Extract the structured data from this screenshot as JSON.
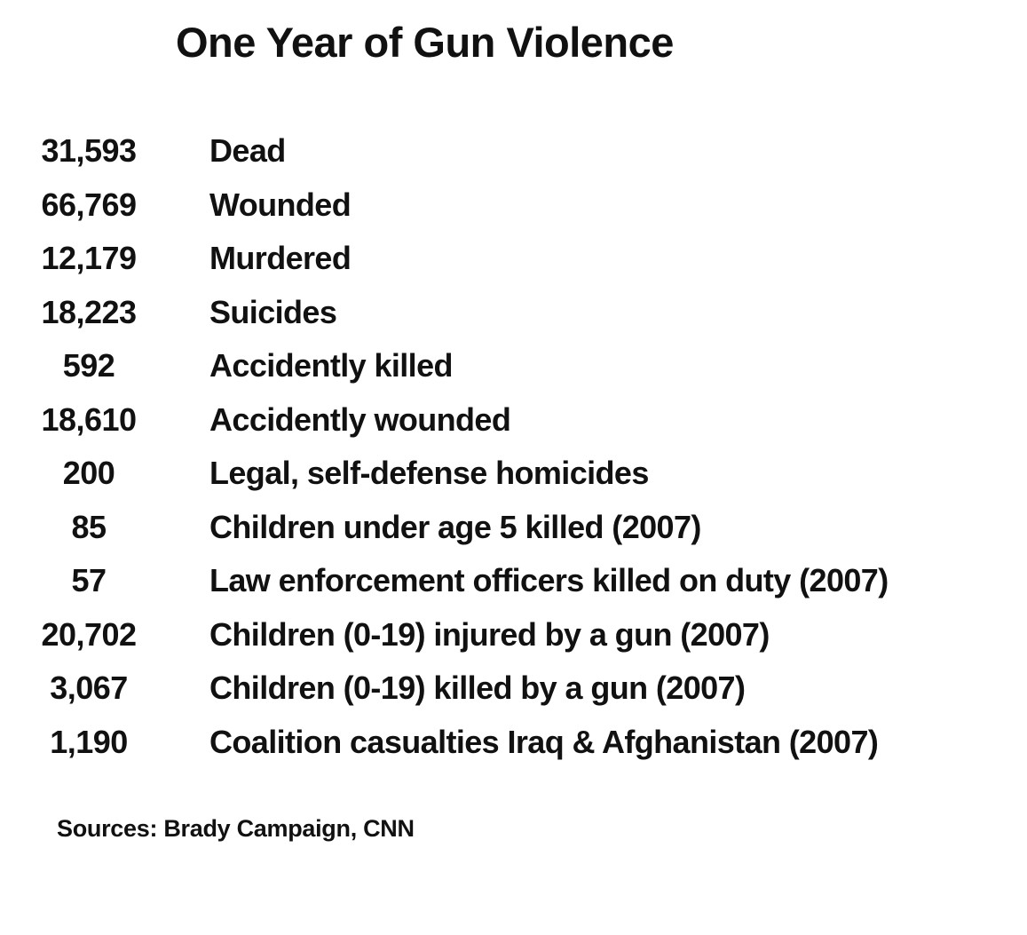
{
  "title": "One Year of Gun Violence",
  "stats": [
    {
      "value": "31,593",
      "label": "Dead"
    },
    {
      "value": "66,769",
      "label": "Wounded"
    },
    {
      "value": "12,179",
      "label": "Murdered"
    },
    {
      "value": "18,223",
      "label": "Suicides"
    },
    {
      "value": "592",
      "label": "Accidently killed"
    },
    {
      "value": "18,610",
      "label": "Accidently wounded"
    },
    {
      "value": "200",
      "label": "Legal, self-defense homicides"
    },
    {
      "value": "85",
      "label": "Children under age 5 killed (2007)"
    },
    {
      "value": "57",
      "label": "Law enforcement officers killed on duty (2007)"
    },
    {
      "value": "20,702",
      "label": "Children (0-19) injured by a gun (2007)"
    },
    {
      "value": "3,067",
      "label": "Children (0-19) killed by a gun (2007)"
    },
    {
      "value": "1,190",
      "label": "Coalition casualties Iraq & Afghanistan (2007)"
    }
  ],
  "sources": "Sources: Brady Campaign, CNN"
}
